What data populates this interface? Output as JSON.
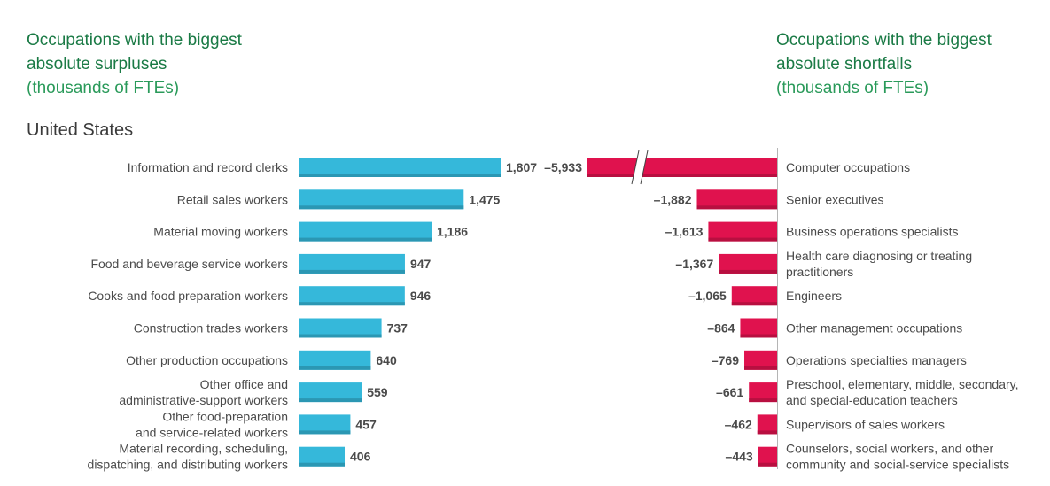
{
  "titles": {
    "left_line1": "Occupations with the biggest",
    "left_line2": "absolute surpluses",
    "left_unit": "(thousands of FTEs)",
    "right_line1": "Occupations with the biggest",
    "right_line2": "absolute shortfalls",
    "right_unit": "(thousands of FTEs)"
  },
  "country": "United States",
  "colors": {
    "surplus": "#35b8da",
    "shortfall": "#e0124e",
    "title": "#1a7a45"
  },
  "chart_data": [
    {
      "type": "bar",
      "title": "Occupations with the biggest absolute surpluses (thousands of FTEs)",
      "categories": [
        [
          "Information and record clerks"
        ],
        [
          "Retail sales workers"
        ],
        [
          "Material moving workers"
        ],
        [
          "Food and beverage service workers"
        ],
        [
          "Cooks and food preparation workers"
        ],
        [
          "Construction trades workers"
        ],
        [
          "Other production occupations"
        ],
        [
          "Other office and",
          "administrative-support workers"
        ],
        [
          "Other food-preparation",
          "and service-related workers"
        ],
        [
          "Material recording, scheduling,",
          "dispatching, and distributing workers"
        ]
      ],
      "values": [
        1807,
        1475,
        1186,
        947,
        946,
        737,
        640,
        559,
        457,
        406
      ],
      "labels": [
        "1,807",
        "1,475",
        "1,186",
        "947",
        "946",
        "737",
        "640",
        "559",
        "457",
        "406"
      ]
    },
    {
      "type": "bar",
      "title": "Occupations with the biggest absolute shortfalls (thousands of FTEs)",
      "axis_break": true,
      "categories": [
        [
          "Computer occupations"
        ],
        [
          "Senior executives"
        ],
        [
          "Business operations specialists"
        ],
        [
          "Health care diagnosing or treating",
          "practitioners"
        ],
        [
          "Engineers"
        ],
        [
          "Other management occupations"
        ],
        [
          "Operations specialties managers"
        ],
        [
          "Preschool, elementary, middle, secondary,",
          "and special-education teachers"
        ],
        [
          "Supervisors of sales workers"
        ],
        [
          "Counselors, social workers, and other",
          "community and social-service specialists"
        ]
      ],
      "values": [
        -5933,
        -1882,
        -1613,
        -1367,
        -1065,
        -864,
        -769,
        -661,
        -462,
        -443
      ],
      "labels": [
        "–5,933",
        "–1,882",
        "–1,613",
        "–1,367",
        "–1,065",
        "–864",
        "–769",
        "–661",
        "–462",
        "–443"
      ]
    }
  ]
}
